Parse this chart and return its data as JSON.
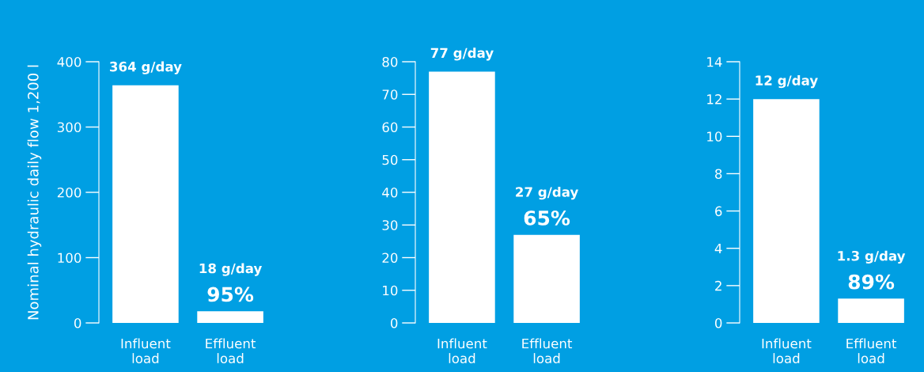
{
  "chart_data": [
    {
      "type": "bar",
      "ylabel": "Nominal hydraulic daily flow 1,200 l",
      "categories": [
        "Influent\nload",
        "Effluent\nload"
      ],
      "values": [
        364,
        18
      ],
      "color": "#ffffff",
      "value_labels": [
        "364 g/day",
        "18 g/day"
      ],
      "annotations": [
        {
          "text": "95%",
          "x": "Effluent\nload",
          "y": 18
        }
      ],
      "ylim": [
        0,
        400
      ],
      "yticks": [
        0,
        100,
        200,
        300,
        400
      ],
      "grid": false
    },
    {
      "type": "bar",
      "categories": [
        "Influent\nload",
        "Effluent\nload"
      ],
      "values": [
        77,
        27
      ],
      "color": "#ffffff",
      "value_labels": [
        "77 g/day",
        "27 g/day"
      ],
      "annotations": [
        {
          "text": "65%",
          "x": "Effluent\nload",
          "y": 27
        }
      ],
      "ylim": [
        0,
        80
      ],
      "yticks": [
        0,
        10,
        20,
        30,
        40,
        50,
        60,
        70,
        80
      ],
      "grid": false
    },
    {
      "type": "bar",
      "categories": [
        "Influent\nload",
        "Effluent\nload"
      ],
      "values": [
        12,
        1.3
      ],
      "color": "#ffffff",
      "value_labels": [
        "12 g/day",
        "1.3 g/day"
      ],
      "annotations": [
        {
          "text": "89%",
          "x": "Effluent\nload",
          "y": 1.3
        }
      ],
      "ylim": [
        0,
        14
      ],
      "yticks": [
        0,
        2,
        4,
        6,
        8,
        10,
        12,
        14
      ],
      "grid": false
    }
  ]
}
